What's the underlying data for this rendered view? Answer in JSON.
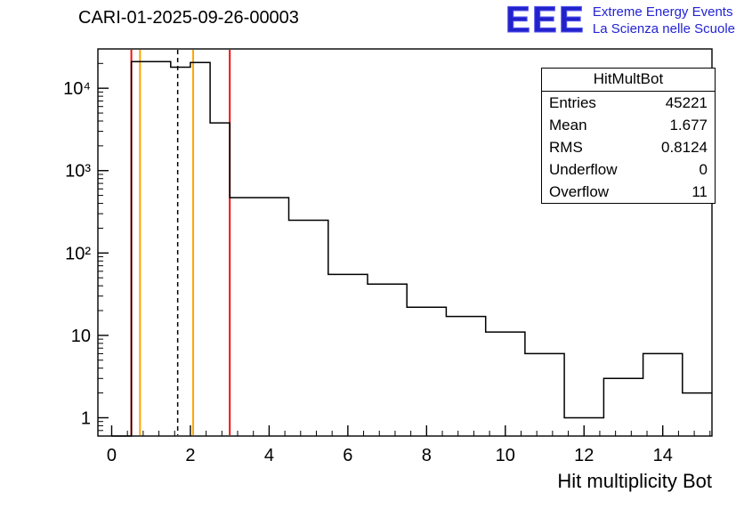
{
  "title": "CARI-01-2025-09-26-00003",
  "logo": {
    "acronym": "EEE",
    "line1": "Extreme Energy Events",
    "line2": "La Scienza nelle Scuole",
    "color": "#2222cc"
  },
  "stats": {
    "header": "HitMultBot",
    "rows": [
      {
        "label": "Entries",
        "value": "45221"
      },
      {
        "label": "Mean",
        "value": "1.677"
      },
      {
        "label": "RMS",
        "value": "0.8124"
      },
      {
        "label": "Underflow",
        "value": "0"
      },
      {
        "label": "Overflow",
        "value": "11"
      }
    ]
  },
  "chart_data": {
    "type": "bar",
    "style": "step-outline-histogram",
    "title": "CARI-01-2025-09-26-00003",
    "xlabel": "Hit multiplicity Bot",
    "ylabel": "",
    "y_scale": "log",
    "x_range": [
      -0.35,
      15.25
    ],
    "y_range": [
      0.6,
      30000
    ],
    "bin_start": 0,
    "bin_width": 0.5,
    "values": [
      0,
      21000,
      21000,
      18000,
      20500,
      3800,
      470,
      470,
      470,
      250,
      250,
      55,
      55,
      42,
      42,
      22,
      22,
      17,
      17,
      11,
      11,
      6,
      6,
      1,
      1,
      3,
      3,
      6,
      6,
      2,
      2
    ],
    "line_color": "#000000",
    "x_ticks": [
      0,
      2,
      4,
      6,
      8,
      10,
      12,
      14
    ],
    "x_minor_step": 0.4,
    "y_ticks": [
      {
        "value": 1,
        "label": "1"
      },
      {
        "value": 10,
        "label": "10"
      },
      {
        "value": 100,
        "label": "10²"
      },
      {
        "value": 1000,
        "label": "10³"
      },
      {
        "value": 10000,
        "label": "10⁴"
      }
    ],
    "marker_lines": [
      {
        "name": "red-cut-line-low",
        "x": 0.5,
        "color": "#ee1111",
        "style": "solid"
      },
      {
        "name": "orange-cut-line-low",
        "x": 0.72,
        "color": "#ffa500",
        "style": "solid"
      },
      {
        "name": "mean-dashed-line",
        "x": 1.677,
        "color": "#000000",
        "style": "dashed"
      },
      {
        "name": "orange-cut-line-high",
        "x": 2.07,
        "color": "#ffa500",
        "style": "solid"
      },
      {
        "name": "red-cut-line-high",
        "x": 3.0,
        "color": "#ee1111",
        "style": "solid"
      }
    ],
    "grid": false,
    "legend": "none"
  }
}
